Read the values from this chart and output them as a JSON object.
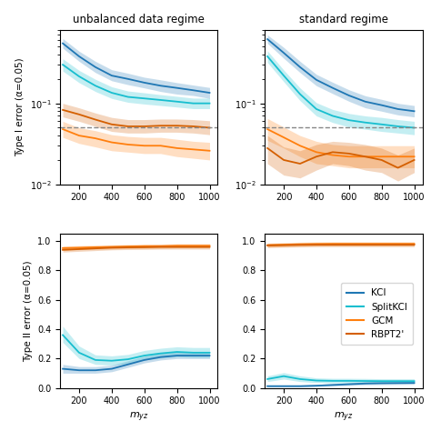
{
  "x": [
    100,
    200,
    300,
    400,
    500,
    600,
    700,
    800,
    900,
    1000
  ],
  "unbal_type1_KCI": [
    0.55,
    0.38,
    0.28,
    0.22,
    0.2,
    0.18,
    0.165,
    0.155,
    0.145,
    0.135
  ],
  "unbal_type1_KCI_lo": [
    0.48,
    0.33,
    0.24,
    0.19,
    0.17,
    0.155,
    0.14,
    0.13,
    0.125,
    0.115
  ],
  "unbal_type1_KCI_hi": [
    0.63,
    0.44,
    0.33,
    0.26,
    0.235,
    0.21,
    0.195,
    0.18,
    0.168,
    0.157
  ],
  "unbal_type1_SplitKCI": [
    0.3,
    0.215,
    0.165,
    0.135,
    0.12,
    0.115,
    0.11,
    0.105,
    0.1,
    0.1
  ],
  "unbal_type1_SplitKCI_lo": [
    0.25,
    0.18,
    0.14,
    0.115,
    0.103,
    0.098,
    0.094,
    0.09,
    0.086,
    0.086
  ],
  "unbal_type1_SplitKCI_hi": [
    0.355,
    0.255,
    0.198,
    0.16,
    0.142,
    0.135,
    0.128,
    0.122,
    0.116,
    0.116
  ],
  "unbal_type1_GCM": [
    0.048,
    0.04,
    0.037,
    0.033,
    0.031,
    0.03,
    0.03,
    0.028,
    0.027,
    0.026
  ],
  "unbal_type1_GCM_lo": [
    0.038,
    0.032,
    0.029,
    0.026,
    0.025,
    0.024,
    0.024,
    0.022,
    0.021,
    0.02
  ],
  "unbal_type1_GCM_hi": [
    0.06,
    0.05,
    0.046,
    0.041,
    0.039,
    0.038,
    0.038,
    0.036,
    0.034,
    0.033
  ],
  "unbal_type1_RBPT2": [
    0.083,
    0.073,
    0.063,
    0.055,
    0.052,
    0.052,
    0.053,
    0.053,
    0.052,
    0.05
  ],
  "unbal_type1_RBPT2_lo": [
    0.068,
    0.06,
    0.052,
    0.045,
    0.043,
    0.043,
    0.044,
    0.044,
    0.043,
    0.041
  ],
  "unbal_type1_RBPT2_hi": [
    0.1,
    0.088,
    0.076,
    0.067,
    0.063,
    0.063,
    0.064,
    0.064,
    0.063,
    0.061
  ],
  "std_type1_KCI": [
    0.62,
    0.42,
    0.28,
    0.195,
    0.155,
    0.125,
    0.105,
    0.095,
    0.085,
    0.08
  ],
  "std_type1_KCI_lo": [
    0.55,
    0.36,
    0.24,
    0.165,
    0.132,
    0.106,
    0.088,
    0.08,
    0.072,
    0.068
  ],
  "std_type1_KCI_hi": [
    0.7,
    0.49,
    0.33,
    0.228,
    0.182,
    0.147,
    0.124,
    0.112,
    0.1,
    0.094
  ],
  "std_type1_SplitKCI": [
    0.38,
    0.22,
    0.13,
    0.085,
    0.07,
    0.062,
    0.058,
    0.055,
    0.052,
    0.05
  ],
  "std_type1_SplitKCI_lo": [
    0.32,
    0.185,
    0.108,
    0.07,
    0.058,
    0.051,
    0.048,
    0.045,
    0.043,
    0.041
  ],
  "std_type1_SplitKCI_hi": [
    0.445,
    0.258,
    0.155,
    0.102,
    0.084,
    0.075,
    0.07,
    0.067,
    0.063,
    0.06
  ],
  "std_type1_GCM": [
    0.048,
    0.038,
    0.03,
    0.025,
    0.023,
    0.022,
    0.022,
    0.022,
    0.022,
    0.022
  ],
  "std_type1_GCM_lo": [
    0.035,
    0.028,
    0.022,
    0.018,
    0.017,
    0.016,
    0.016,
    0.016,
    0.016,
    0.016
  ],
  "std_type1_GCM_hi": [
    0.065,
    0.051,
    0.04,
    0.034,
    0.031,
    0.03,
    0.03,
    0.03,
    0.03,
    0.03
  ],
  "std_type1_RBPT2": [
    0.028,
    0.02,
    0.018,
    0.022,
    0.025,
    0.024,
    0.022,
    0.02,
    0.016,
    0.02
  ],
  "std_type1_RBPT2_lo": [
    0.018,
    0.013,
    0.012,
    0.015,
    0.018,
    0.017,
    0.015,
    0.014,
    0.011,
    0.014
  ],
  "std_type1_RBPT2_hi": [
    0.04,
    0.029,
    0.026,
    0.031,
    0.034,
    0.033,
    0.031,
    0.028,
    0.023,
    0.028
  ],
  "unbal_type2_KCI": [
    0.13,
    0.12,
    0.12,
    0.13,
    0.16,
    0.19,
    0.21,
    0.22,
    0.22,
    0.22
  ],
  "unbal_type2_KCI_lo": [
    0.1,
    0.1,
    0.1,
    0.11,
    0.14,
    0.17,
    0.19,
    0.2,
    0.2,
    0.2
  ],
  "unbal_type2_KCI_hi": [
    0.16,
    0.145,
    0.145,
    0.155,
    0.185,
    0.215,
    0.235,
    0.245,
    0.245,
    0.245
  ],
  "unbal_type2_SplitKCI": [
    0.36,
    0.24,
    0.19,
    0.185,
    0.195,
    0.22,
    0.235,
    0.245,
    0.24,
    0.24
  ],
  "unbal_type2_SplitKCI_lo": [
    0.31,
    0.2,
    0.16,
    0.155,
    0.165,
    0.19,
    0.203,
    0.213,
    0.208,
    0.208
  ],
  "unbal_type2_SplitKCI_hi": [
    0.42,
    0.285,
    0.225,
    0.218,
    0.228,
    0.255,
    0.27,
    0.28,
    0.275,
    0.275
  ],
  "unbal_type2_GCM": [
    0.952,
    0.955,
    0.958,
    0.96,
    0.963,
    0.965,
    0.965,
    0.968,
    0.968,
    0.968
  ],
  "unbal_type2_GCM_lo": [
    0.938,
    0.941,
    0.944,
    0.946,
    0.949,
    0.951,
    0.951,
    0.954,
    0.954,
    0.954
  ],
  "unbal_type2_GCM_hi": [
    0.966,
    0.969,
    0.972,
    0.974,
    0.977,
    0.979,
    0.979,
    0.982,
    0.982,
    0.982
  ],
  "unbal_type2_RBPT2": [
    0.94,
    0.945,
    0.95,
    0.955,
    0.957,
    0.958,
    0.96,
    0.96,
    0.96,
    0.96
  ],
  "unbal_type2_RBPT2_lo": [
    0.925,
    0.93,
    0.935,
    0.94,
    0.942,
    0.943,
    0.945,
    0.945,
    0.945,
    0.945
  ],
  "unbal_type2_RBPT2_hi": [
    0.955,
    0.96,
    0.965,
    0.97,
    0.972,
    0.973,
    0.975,
    0.975,
    0.975,
    0.975
  ],
  "std_type2_KCI": [
    0.012,
    0.012,
    0.012,
    0.015,
    0.02,
    0.025,
    0.03,
    0.032,
    0.033,
    0.034
  ],
  "std_type2_KCI_lo": [
    0.007,
    0.007,
    0.007,
    0.009,
    0.013,
    0.017,
    0.021,
    0.022,
    0.023,
    0.024
  ],
  "std_type2_KCI_hi": [
    0.019,
    0.019,
    0.019,
    0.023,
    0.03,
    0.036,
    0.042,
    0.045,
    0.046,
    0.047
  ],
  "std_type2_SplitKCI": [
    0.06,
    0.08,
    0.06,
    0.05,
    0.048,
    0.048,
    0.047,
    0.046,
    0.046,
    0.046
  ],
  "std_type2_SplitKCI_lo": [
    0.043,
    0.06,
    0.043,
    0.036,
    0.034,
    0.034,
    0.033,
    0.033,
    0.033,
    0.033
  ],
  "std_type2_SplitKCI_hi": [
    0.082,
    0.104,
    0.082,
    0.068,
    0.065,
    0.065,
    0.064,
    0.062,
    0.062,
    0.062
  ],
  "std_type2_GCM": [
    0.972,
    0.975,
    0.978,
    0.98,
    0.981,
    0.981,
    0.981,
    0.981,
    0.981,
    0.981
  ],
  "std_type2_GCM_lo": [
    0.958,
    0.961,
    0.964,
    0.966,
    0.967,
    0.967,
    0.967,
    0.967,
    0.967,
    0.967
  ],
  "std_type2_GCM_hi": [
    0.986,
    0.989,
    0.992,
    0.994,
    0.995,
    0.995,
    0.995,
    0.995,
    0.995,
    0.995
  ],
  "std_type2_RBPT2": [
    0.97,
    0.972,
    0.974,
    0.975,
    0.975,
    0.975,
    0.975,
    0.975,
    0.975,
    0.975
  ],
  "std_type2_RBPT2_lo": [
    0.956,
    0.958,
    0.96,
    0.961,
    0.961,
    0.961,
    0.961,
    0.961,
    0.961,
    0.961
  ],
  "std_type2_RBPT2_hi": [
    0.984,
    0.986,
    0.988,
    0.989,
    0.989,
    0.989,
    0.989,
    0.989,
    0.989,
    0.989
  ],
  "color_KCI": "#1f77b4",
  "color_SplitKCI": "#17becf",
  "color_GCM": "#ff7f0e",
  "color_RBPT2": "#d45f00",
  "alpha_band": 0.25,
  "dashed_level": 0.05,
  "title_left": "unbalanced data regime",
  "title_right": "standard regime",
  "ylabel_top": "Type I error (α=0.05)",
  "ylabel_bottom": "Type II error (α=0.05)",
  "xlabel": "$m_{yz}$",
  "legend_labels": [
    "KCI",
    "SplitKCI",
    "GCM",
    "RBPT2'"
  ],
  "xticks": [
    200,
    400,
    600,
    800,
    1000
  ]
}
